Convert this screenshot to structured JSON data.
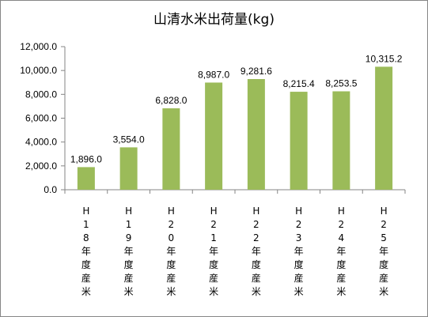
{
  "chart_data": {
    "type": "bar",
    "title": "山清水米出荷量(kg)",
    "categories": [
      "H18年度産米",
      "H19年度産米",
      "H20年度産米",
      "H21年度産米",
      "H22年度産米",
      "H23年度産米",
      "H24年度産米",
      "H25年度産米"
    ],
    "values": [
      1896.0,
      3554.0,
      6828.0,
      8987.0,
      9281.6,
      8215.4,
      8253.5,
      10315.2
    ],
    "data_labels": [
      "1,896.0",
      "3,554.0",
      "6,828.0",
      "8,987.0",
      "9,281.6",
      "8,215.4",
      "8,253.5",
      "10,315.2"
    ],
    "y_tick_labels": [
      "0.0",
      "2,000.0",
      "4,000.0",
      "6,000.0",
      "8,000.0",
      "10,000.0",
      "12,000.0"
    ],
    "ylim": [
      0,
      12000
    ],
    "y_tick_step": 2000,
    "grid": false,
    "legend": "none",
    "bar_color": "#9BBB59",
    "axis_color": "#868686"
  }
}
